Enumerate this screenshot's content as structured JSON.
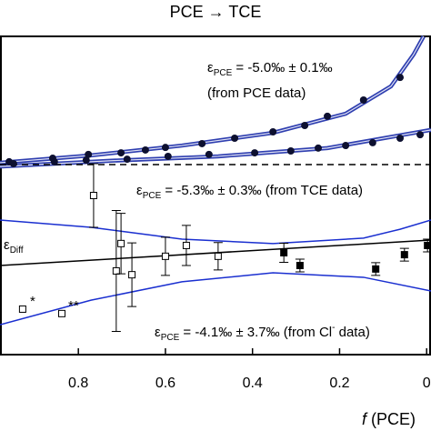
{
  "chart_data": {
    "type": "scatter",
    "title": "PCE → TCE",
    "x_label_symbol": "f",
    "x_label": " (PCE)",
    "xlim": [
      0.98,
      -0.01
    ],
    "xticks": [
      0.8,
      0.6,
      0.4,
      0.2,
      0
    ],
    "ylim": [
      0,
      100
    ],
    "series": [
      {
        "marker": "line",
        "color": "#2f3fb0",
        "band": true,
        "x": [
          0.98,
          0.771,
          0.562,
          0.353,
          0.186,
          0.082,
          0.03,
          0.007
        ],
        "values": [
          60.3,
          62.6,
          65.7,
          69.7,
          75.7,
          84.3,
          94.3,
          100
        ]
      },
      {
        "marker": "line",
        "color": "#2f3fb0",
        "band": true,
        "x": [
          0.98,
          0.729,
          0.479,
          0.228,
          -0.01
        ],
        "values": [
          59.1,
          60.9,
          62.3,
          64.9,
          70.6
        ]
      },
      {
        "marker": "line",
        "color": "#000000",
        "dash": true,
        "x": [
          0.98,
          -0.01
        ],
        "values": [
          59.7,
          59.7
        ]
      },
      {
        "marker": "circle",
        "color": "#0d1030",
        "x": [
          0.959,
          0.859,
          0.777,
          0.702,
          0.646,
          0.6,
          0.516,
          0.441,
          0.353,
          0.28,
          0.228,
          0.145,
          0.061
        ],
        "values": [
          60.6,
          61.7,
          62.9,
          63.4,
          64.3,
          65.1,
          66.3,
          68.0,
          70.0,
          72.0,
          74.9,
          80.0,
          87.1
        ]
      },
      {
        "marker": "circle",
        "color": "#0d1030",
        "x": [
          0.949,
          0.855,
          0.782,
          0.688,
          0.594,
          0.5,
          0.395,
          0.312,
          0.249,
          0.186,
          0.124,
          0.061,
          0.015
        ],
        "values": [
          60.0,
          60.6,
          61.1,
          61.4,
          62.3,
          62.9,
          63.4,
          64.0,
          64.9,
          65.7,
          66.6,
          68.0,
          69.1
        ]
      },
      {
        "marker": "line",
        "color": "#1a2fd0",
        "x": [
          0.98,
          0.771,
          0.562,
          0.353,
          0.145,
          0.061,
          -0.01
        ],
        "values": [
          42.3,
          40.0,
          36.3,
          34.9,
          36.6,
          39.4,
          42.3
        ]
      },
      {
        "marker": "line",
        "color": "#1a2fd0",
        "x": [
          0.98,
          0.771,
          0.562,
          0.353,
          0.145,
          -0.01
        ],
        "values": [
          9.4,
          17.1,
          22.9,
          25.7,
          24.3,
          20.0
        ]
      },
      {
        "marker": "line",
        "color": "#000000",
        "x": [
          0.98,
          -0.01
        ],
        "values": [
          28.0,
          36.0
        ]
      },
      {
        "marker": "square-open",
        "color": "#000000",
        "x": [
          0.765,
          0.713,
          0.702,
          0.677,
          0.6,
          0.552,
          0.479
        ],
        "values": [
          50.0,
          26.3,
          34.9,
          25.1,
          30.9,
          34.3,
          30.9
        ],
        "errors": [
          10,
          19,
          9.5,
          10,
          6,
          6.3,
          4.3
        ]
      },
      {
        "marker": "square-filled",
        "color": "#000000",
        "x": [
          0.328,
          0.291,
          0.117,
          0.051,
          -0.002
        ],
        "values": [
          32.0,
          28.0,
          26.9,
          31.4,
          34.3
        ],
        "errors": [
          3,
          2,
          2,
          2,
          2
        ]
      },
      {
        "marker": "square-open",
        "color": "#000000",
        "x": [
          0.928,
          0.838
        ],
        "values": [
          14.3,
          12.9
        ]
      }
    ],
    "annotations": [
      {
        "parts": [
          {
            "text": "ε"
          },
          {
            "text": "PCE",
            "sub": true
          },
          {
            "text": " = -5.0‰ ± 0.1‰"
          }
        ]
      },
      {
        "parts": [
          {
            "text": "(from PCE data)"
          }
        ]
      },
      {
        "parts": [
          {
            "text": "ε"
          },
          {
            "text": "PCE",
            "sub": true
          },
          {
            "text": " = -5.3‰ ± 0.3‰ (from TCE data)"
          }
        ]
      },
      {
        "parts": [
          {
            "text": "ε"
          },
          {
            "text": "Diff",
            "sub": true
          }
        ]
      },
      {
        "parts": [
          {
            "text": "ε"
          },
          {
            "text": "PCE",
            "sub": true
          },
          {
            "text": " = -4.1‰ ± 3.7‰ (from Cl"
          },
          {
            "text": "-",
            "sup": true
          },
          {
            "text": " data)"
          }
        ]
      },
      {
        "parts": [
          {
            "text": "*"
          }
        ]
      },
      {
        "parts": [
          {
            "text": "**"
          }
        ]
      }
    ]
  }
}
